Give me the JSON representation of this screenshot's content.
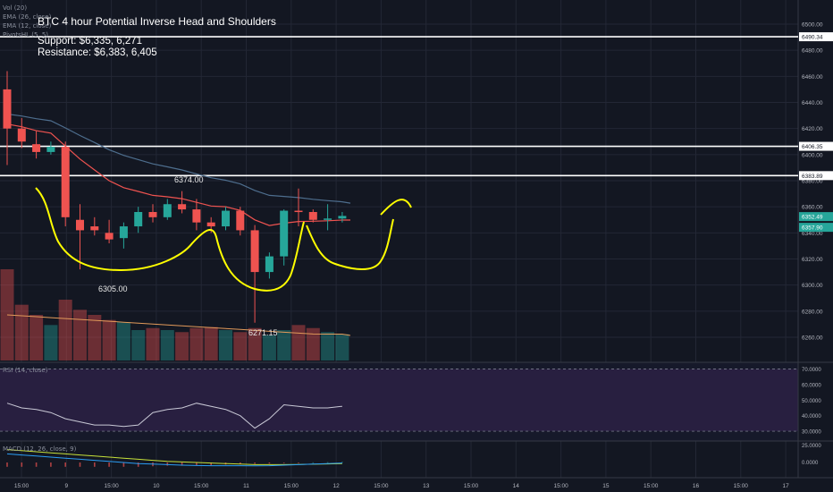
{
  "indicators": {
    "vol": "Vol (20)",
    "ema26": "EMA (26, close)",
    "ema12": "EMA (12, close)",
    "pivots": "PivotsHL (5, 5)",
    "rsi": "RSI (14, close)",
    "macd": "MACD (12, 26, close, 9)"
  },
  "annotations": {
    "high_label": "6374.00",
    "left_shoulder_label": "6305.00",
    "head_label": "6271.15"
  },
  "colors": {
    "background": "#131722",
    "bull": "#26a69a",
    "bear": "#ef5350",
    "drawing": "#ffff00",
    "ema12": "#ef5350",
    "ema26": "#4e6e8e",
    "rsi_line": "#c9c9d6",
    "rsi_band": "#7b3fa8",
    "macd_line": "#2a9df4",
    "signal_line": "#c7e23a",
    "vol_ma": "#e29a5a"
  },
  "chart_data": {
    "type": "candlestick",
    "title": "BTC 4 hour Potential Inverse Head and Shoulders",
    "notes": [
      "Support: $6,335, 6,271",
      "Resistance: $6,383, 6,405"
    ],
    "horizontal_levels": [
      6490.34,
      6406.35,
      6383.89
    ],
    "price_axis": {
      "range": [
        6244,
        6520
      ],
      "ticks": [
        "6500.00",
        "6480.00",
        "6460.00",
        "6440.00",
        "6420.00",
        "6400.00",
        "6380.00",
        "6360.00",
        "6340.00",
        "6320.00",
        "6300.00",
        "6280.00",
        "6260.00"
      ],
      "level_labels": [
        "6490.34",
        "6406.35",
        "6383.89"
      ],
      "last_price_labels": [
        "6352.49",
        "6357.90"
      ]
    },
    "time_axis": {
      "ticks": [
        "15:00",
        "9",
        "15:00",
        "10",
        "15:00",
        "11",
        "15:00",
        "12",
        "15:00",
        "13",
        "15:00",
        "14",
        "15:00",
        "15",
        "15:00",
        "16",
        "15:00",
        "17"
      ]
    },
    "candles": [
      {
        "o": 6450,
        "h": 6464,
        "l": 6392,
        "c": 6420
      },
      {
        "o": 6420,
        "h": 6428,
        "l": 6405,
        "c": 6410
      },
      {
        "o": 6408,
        "h": 6418,
        "l": 6397,
        "c": 6402
      },
      {
        "o": 6402,
        "h": 6410,
        "l": 6400,
        "c": 6406
      },
      {
        "o": 6406,
        "h": 6410,
        "l": 6345,
        "c": 6352
      },
      {
        "o": 6350,
        "h": 6362,
        "l": 6312,
        "c": 6342
      },
      {
        "o": 6345,
        "h": 6352,
        "l": 6338,
        "c": 6342
      },
      {
        "o": 6340,
        "h": 6350,
        "l": 6332,
        "c": 6335
      },
      {
        "o": 6336,
        "h": 6348,
        "l": 6328,
        "c": 6345
      },
      {
        "o": 6345,
        "h": 6360,
        "l": 6340,
        "c": 6356
      },
      {
        "o": 6356,
        "h": 6362,
        "l": 6348,
        "c": 6352
      },
      {
        "o": 6352,
        "h": 6366,
        "l": 6350,
        "c": 6362
      },
      {
        "o": 6362,
        "h": 6372,
        "l": 6355,
        "c": 6358
      },
      {
        "o": 6358,
        "h": 6366,
        "l": 6342,
        "c": 6348
      },
      {
        "o": 6348,
        "h": 6352,
        "l": 6340,
        "c": 6345
      },
      {
        "o": 6345,
        "h": 6360,
        "l": 6342,
        "c": 6357
      },
      {
        "o": 6357,
        "h": 6360,
        "l": 6338,
        "c": 6342
      },
      {
        "o": 6342,
        "h": 6346,
        "l": 6271.15,
        "c": 6310
      },
      {
        "o": 6310,
        "h": 6325,
        "l": 6305,
        "c": 6322
      },
      {
        "o": 6322,
        "h": 6358,
        "l": 6315,
        "c": 6357
      },
      {
        "o": 6357,
        "h": 6374,
        "l": 6345,
        "c": 6356
      },
      {
        "o": 6356,
        "h": 6358,
        "l": 6348,
        "c": 6350
      },
      {
        "o": 6350,
        "h": 6362,
        "l": 6342,
        "c": 6351
      },
      {
        "o": 6351,
        "h": 6356,
        "l": 6348,
        "c": 6353
      }
    ],
    "volume": [
      90,
      55,
      45,
      35,
      60,
      50,
      45,
      40,
      38,
      30,
      32,
      30,
      28,
      32,
      33,
      30,
      28,
      32,
      25,
      30,
      35,
      32,
      28,
      26
    ],
    "rsi": {
      "range": [
        30,
        70
      ],
      "values": [
        48,
        45,
        44,
        42,
        38,
        36,
        34,
        34,
        33,
        34,
        42,
        44,
        45,
        48,
        46,
        44,
        40,
        32,
        38,
        47,
        46,
        45,
        45,
        46
      ]
    },
    "macd": {
      "macd": [
        8,
        7,
        6,
        5,
        4,
        3,
        2,
        1,
        0,
        -1,
        -1.5,
        -2,
        -2.5,
        -2.8,
        -3,
        -3,
        -3,
        -3.2,
        -3,
        -2.5,
        -2,
        -1.5,
        -1,
        -0.5
      ],
      "signal": [
        12,
        11,
        10,
        9,
        8,
        7,
        6,
        5,
        4,
        3,
        2,
        1,
        0.5,
        0,
        -0.5,
        -1,
        -1.5,
        -2,
        -2,
        -2,
        -1.8,
        -1.6,
        -1.3,
        -1
      ]
    }
  }
}
